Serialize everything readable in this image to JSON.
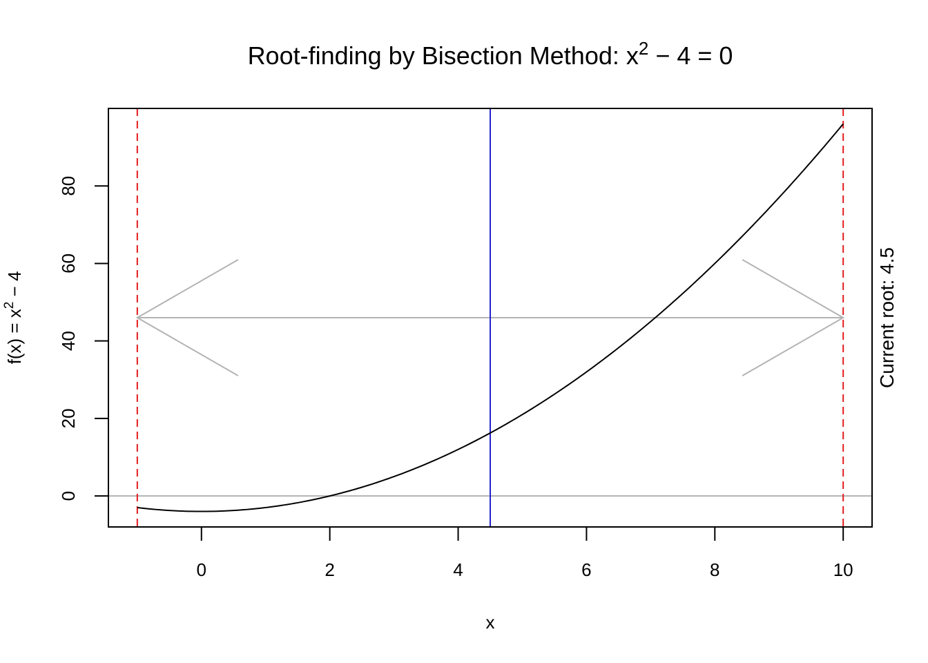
{
  "chart_data": {
    "type": "line",
    "title": {
      "main": "Root-finding by Bisection Method: x",
      "sup": "2",
      "rest": " − 4 = 0"
    },
    "xlabel": "x",
    "ylabel": {
      "main": "f(x) = x",
      "sup": "2",
      "rest": " − 4"
    },
    "side_label": "Current root: 4.5",
    "xlim": [
      -1.45,
      10.45
    ],
    "ylim": [
      -8,
      100
    ],
    "x_ticks": [
      0,
      2,
      4,
      6,
      8,
      10
    ],
    "y_ticks": [
      0,
      20,
      40,
      60,
      80
    ],
    "series": [
      {
        "function": "x^2 - 4",
        "x_range": [
          -1,
          10
        ],
        "color": "#000000"
      }
    ],
    "interval": {
      "lower": -1,
      "upper": 10,
      "color": "#e41a1c"
    },
    "current_root": {
      "x": 4.5,
      "color": "#2222cc"
    },
    "zero_line": {
      "y": 0,
      "color": "#b3b3b3"
    },
    "bracket_arrow": {
      "from": -1,
      "to": 10,
      "y": 46,
      "color": "#b3b3b3"
    }
  }
}
